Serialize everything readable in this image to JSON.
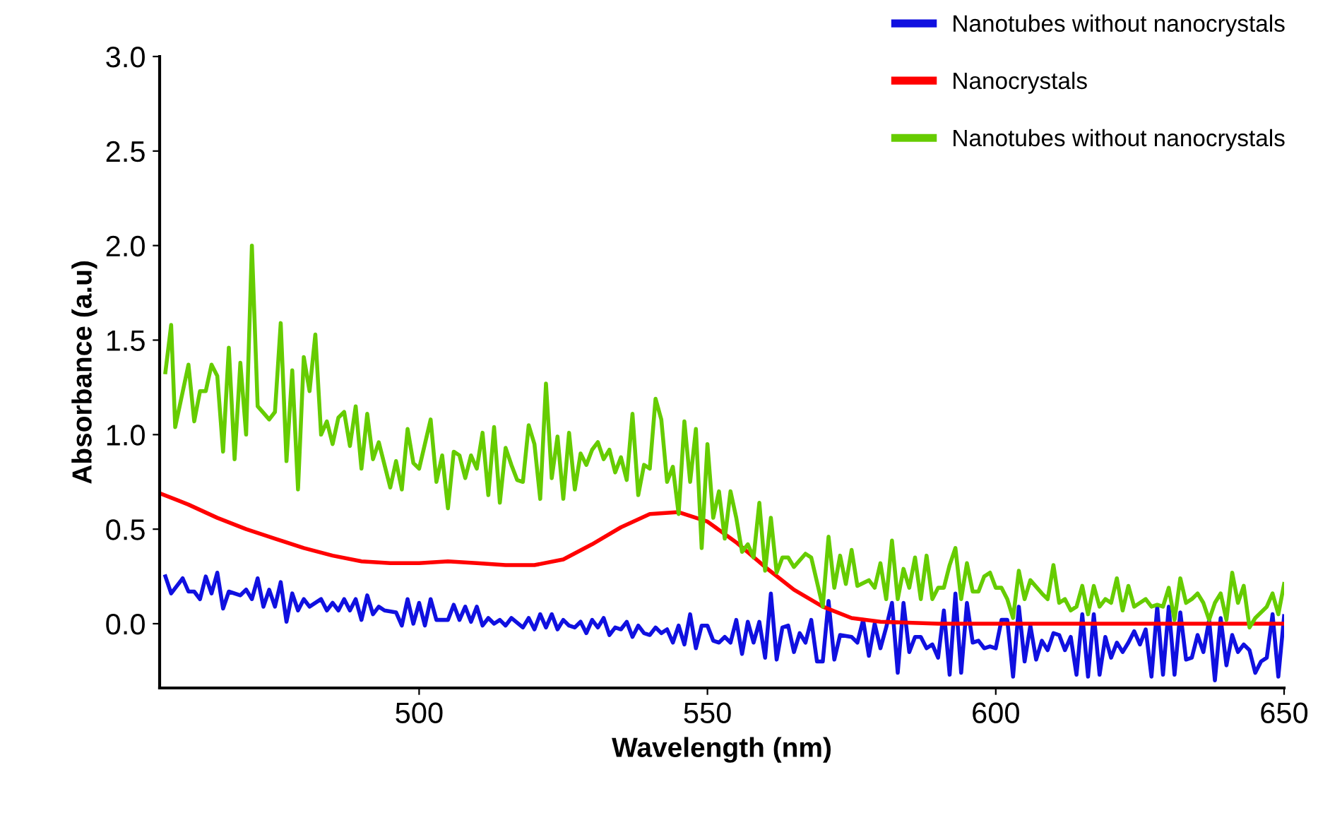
{
  "chart_data": {
    "type": "line",
    "xlabel": "Wavelength (nm)",
    "ylabel": "Absorbance (a.u)",
    "xlim": [
      455,
      650
    ],
    "xticks": [
      500,
      550,
      600,
      650
    ],
    "ylim": [
      -0.34,
      3.0
    ],
    "yticks": [
      {
        "value": 0,
        "label": "0.0"
      },
      {
        "value": 0.5,
        "label": "0.5"
      },
      {
        "value": 1,
        "label": "1.0"
      },
      {
        "value": 1.5,
        "label": "1.5"
      },
      {
        "value": 2,
        "label": "2.0"
      },
      {
        "value": 2.5,
        "label": "2.5"
      },
      {
        "value": 3,
        "label": "3.0"
      }
    ],
    "grid": false,
    "legend": "top right",
    "line_style": "solid",
    "marker": "none",
    "series": [
      {
        "name": "Nanotubes without nanocrystals",
        "color": "#1010e0",
        "x": [
          456,
          457,
          459,
          460,
          461,
          462,
          463,
          464,
          465,
          466,
          467,
          469,
          470,
          471,
          472,
          473,
          474,
          475,
          476,
          477,
          478,
          479,
          480,
          481,
          483,
          484,
          485,
          486,
          487,
          488,
          489,
          490,
          491,
          492,
          493,
          494,
          496,
          497,
          498,
          499,
          500,
          501,
          502,
          503,
          505,
          506,
          507,
          508,
          509,
          510,
          511,
          512,
          513,
          514,
          515,
          516,
          518,
          519,
          520,
          521,
          522,
          523,
          524,
          525,
          526,
          527,
          528,
          529,
          530,
          531,
          532,
          533,
          534,
          535,
          536,
          537,
          538,
          539,
          540,
          541,
          542,
          543,
          544,
          545,
          546,
          547,
          548,
          549,
          550,
          551,
          552,
          553,
          554,
          555,
          556,
          557,
          558,
          559,
          560,
          561,
          562,
          563,
          564,
          565,
          566,
          567,
          568,
          569,
          570,
          571,
          572,
          573,
          575,
          576,
          577,
          578,
          579,
          580,
          581,
          582,
          583,
          584,
          585,
          586,
          587,
          588,
          589,
          590,
          591,
          592,
          593,
          594,
          595,
          596,
          597,
          598,
          599,
          600,
          601,
          602,
          603,
          604,
          605,
          606,
          607,
          608,
          609,
          610,
          611,
          612,
          613,
          614,
          615,
          616,
          617,
          618,
          619,
          620,
          621,
          622,
          623,
          624,
          625,
          626,
          627,
          628,
          629,
          630,
          631,
          632,
          633,
          634,
          635,
          636,
          637,
          638,
          639,
          640,
          641,
          642,
          643,
          644,
          645,
          646,
          647,
          648,
          649,
          650
        ],
        "values": [
          0.25,
          0.16,
          0.24,
          0.17,
          0.17,
          0.13,
          0.25,
          0.16,
          0.27,
          0.08,
          0.17,
          0.15,
          0.18,
          0.13,
          0.24,
          0.09,
          0.18,
          0.09,
          0.22,
          0.01,
          0.16,
          0.07,
          0.13,
          0.09,
          0.13,
          0.07,
          0.11,
          0.07,
          0.13,
          0.07,
          0.13,
          0.02,
          0.15,
          0.05,
          0.09,
          0.07,
          0.06,
          -0.01,
          0.13,
          0.0,
          0.11,
          -0.01,
          0.13,
          0.02,
          0.02,
          0.1,
          0.02,
          0.09,
          0.01,
          0.09,
          -0.01,
          0.03,
          0.0,
          0.02,
          -0.01,
          0.03,
          -0.02,
          0.03,
          -0.03,
          0.05,
          -0.02,
          0.05,
          -0.03,
          0.02,
          -0.01,
          -0.02,
          0.01,
          -0.05,
          0.02,
          -0.02,
          0.03,
          -0.06,
          -0.02,
          -0.03,
          0.01,
          -0.07,
          -0.01,
          -0.05,
          -0.06,
          -0.02,
          -0.05,
          -0.03,
          -0.1,
          -0.01,
          -0.11,
          0.05,
          -0.13,
          -0.01,
          -0.01,
          -0.09,
          -0.1,
          -0.07,
          -0.1,
          0.02,
          -0.16,
          0.01,
          -0.1,
          0.01,
          -0.18,
          0.16,
          -0.19,
          -0.02,
          -0.01,
          -0.15,
          -0.05,
          -0.1,
          0.02,
          -0.2,
          -0.2,
          0.12,
          -0.19,
          -0.06,
          -0.07,
          -0.1,
          0.02,
          -0.17,
          0.0,
          -0.13,
          -0.02,
          0.11,
          -0.26,
          0.11,
          -0.15,
          -0.07,
          -0.07,
          -0.13,
          -0.11,
          -0.18,
          0.07,
          -0.27,
          0.16,
          -0.26,
          0.11,
          -0.1,
          -0.09,
          -0.13,
          -0.12,
          -0.13,
          0.02,
          0.02,
          -0.28,
          0.09,
          -0.2,
          -0.01,
          -0.19,
          -0.09,
          -0.14,
          -0.05,
          -0.06,
          -0.14,
          -0.07,
          -0.27,
          0.05,
          -0.28,
          0.05,
          -0.27,
          -0.07,
          -0.18,
          -0.1,
          -0.15,
          -0.1,
          -0.04,
          -0.11,
          -0.03,
          -0.28,
          0.09,
          -0.27,
          0.09,
          -0.27,
          0.06,
          -0.19,
          -0.18,
          -0.06,
          -0.15,
          0.02,
          -0.3,
          0.03,
          -0.22,
          -0.06,
          -0.15,
          -0.11,
          -0.14,
          -0.26,
          -0.2,
          -0.18,
          0.05,
          -0.28,
          0.04
        ]
      },
      {
        "name": "Nanocrystals",
        "color": "#ff0000",
        "x": [
          455,
          460,
          465,
          470,
          475,
          480,
          485,
          490,
          495,
          500,
          505,
          510,
          515,
          520,
          525,
          530,
          535,
          540,
          545,
          550,
          555,
          560,
          565,
          570,
          575,
          580,
          590,
          600,
          620,
          640,
          650
        ],
        "values": [
          0.69,
          0.63,
          0.56,
          0.5,
          0.45,
          0.4,
          0.36,
          0.33,
          0.32,
          0.32,
          0.33,
          0.32,
          0.31,
          0.31,
          0.34,
          0.42,
          0.51,
          0.58,
          0.59,
          0.54,
          0.43,
          0.3,
          0.18,
          0.09,
          0.03,
          0.01,
          0.0,
          0.0,
          0.0,
          0.0,
          0.0
        ]
      },
      {
        "name": "Nanotubes without nanocrystals",
        "color": "#66cc00",
        "x": [
          456,
          457,
          457.7,
          460,
          461,
          462,
          463,
          464,
          465,
          466,
          467,
          468,
          469,
          470,
          471,
          472,
          474,
          475,
          476,
          477,
          478,
          479,
          480,
          481,
          482,
          483,
          484,
          485,
          486,
          487,
          488,
          489,
          490,
          491,
          492,
          493,
          495,
          496,
          497,
          498,
          499,
          500,
          502,
          503,
          504,
          505,
          506,
          507,
          508,
          509,
          510,
          511,
          512,
          513,
          514,
          515,
          516,
          517,
          518,
          519,
          520,
          521,
          522,
          523,
          524,
          525,
          526,
          527,
          528,
          529,
          530,
          531,
          532,
          533,
          534,
          535,
          536,
          537,
          538,
          539,
          540,
          541,
          542,
          543,
          544,
          545,
          546,
          547,
          548,
          549,
          550,
          551,
          552,
          553,
          554,
          555,
          556,
          557,
          558,
          559,
          560,
          561,
          562,
          563,
          564,
          565,
          567,
          568,
          570,
          571,
          572,
          573,
          574,
          575,
          576,
          578,
          579,
          580,
          581,
          582,
          583,
          584,
          585,
          586,
          587,
          588,
          589,
          590,
          591,
          592,
          593,
          594,
          595,
          596,
          597,
          598,
          599,
          600,
          601,
          602,
          603,
          604,
          605,
          606,
          608,
          609,
          610,
          611,
          612,
          613,
          614,
          615,
          616,
          617,
          618,
          619,
          620,
          621,
          622,
          623,
          624,
          625,
          626,
          627,
          628,
          629,
          630,
          631,
          632,
          633,
          634,
          635,
          636,
          637,
          638,
          639,
          640,
          641,
          642,
          643,
          644,
          645,
          647,
          648,
          649,
          650
        ],
        "values": [
          1.33,
          1.58,
          1.04,
          1.37,
          1.07,
          1.23,
          1.23,
          1.37,
          1.31,
          0.91,
          1.46,
          0.87,
          1.38,
          1.0,
          2.0,
          1.15,
          1.08,
          1.12,
          1.59,
          0.86,
          1.34,
          0.71,
          1.41,
          1.23,
          1.53,
          1.0,
          1.07,
          0.95,
          1.09,
          1.12,
          0.94,
          1.15,
          0.82,
          1.11,
          0.87,
          0.96,
          0.72,
          0.86,
          0.71,
          1.03,
          0.85,
          0.82,
          1.08,
          0.75,
          0.89,
          0.61,
          0.91,
          0.89,
          0.77,
          0.89,
          0.82,
          1.01,
          0.68,
          1.04,
          0.64,
          0.93,
          0.84,
          0.76,
          0.75,
          1.05,
          0.95,
          0.66,
          1.27,
          0.77,
          0.99,
          0.66,
          1.01,
          0.71,
          0.9,
          0.84,
          0.92,
          0.96,
          0.87,
          0.92,
          0.8,
          0.88,
          0.76,
          1.11,
          0.68,
          0.84,
          0.82,
          1.19,
          1.08,
          0.75,
          0.83,
          0.58,
          1.07,
          0.75,
          1.03,
          0.4,
          0.95,
          0.56,
          0.7,
          0.45,
          0.7,
          0.56,
          0.38,
          0.42,
          0.35,
          0.64,
          0.28,
          0.56,
          0.27,
          0.35,
          0.35,
          0.3,
          0.37,
          0.35,
          0.09,
          0.46,
          0.19,
          0.36,
          0.21,
          0.39,
          0.2,
          0.23,
          0.19,
          0.32,
          0.13,
          0.44,
          0.13,
          0.29,
          0.19,
          0.35,
          0.13,
          0.36,
          0.13,
          0.19,
          0.19,
          0.31,
          0.4,
          0.13,
          0.32,
          0.17,
          0.17,
          0.25,
          0.27,
          0.19,
          0.19,
          0.13,
          0.03,
          0.28,
          0.13,
          0.23,
          0.16,
          0.13,
          0.31,
          0.11,
          0.13,
          0.07,
          0.09,
          0.2,
          0.05,
          0.2,
          0.09,
          0.13,
          0.11,
          0.24,
          0.07,
          0.2,
          0.09,
          0.11,
          0.13,
          0.09,
          0.1,
          0.09,
          0.19,
          0.02,
          0.24,
          0.11,
          0.13,
          0.16,
          0.11,
          0.02,
          0.11,
          0.16,
          0.02,
          0.27,
          0.11,
          0.2,
          -0.02,
          0.03,
          0.09,
          0.16,
          0.05,
          0.21
        ]
      }
    ]
  }
}
